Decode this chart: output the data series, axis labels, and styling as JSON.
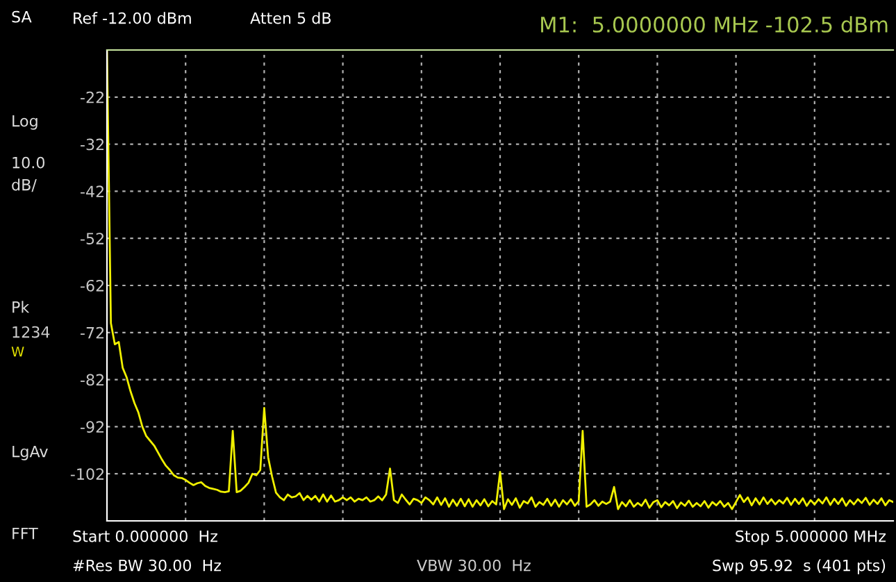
{
  "chart_data": {
    "type": "line",
    "categories": [
      null,
      null,
      null,
      null,
      null,
      null,
      null,
      null,
      null,
      null,
      null,
      null,
      null,
      null,
      null,
      null,
      null,
      null,
      null,
      null,
      null,
      null,
      null,
      null,
      null,
      null,
      null,
      null,
      null,
      null,
      null,
      null,
      null,
      null,
      null,
      null,
      null,
      null,
      null,
      null,
      null,
      null,
      null,
      null,
      null,
      null,
      null,
      null,
      null,
      null,
      null,
      null,
      null,
      null,
      null,
      null,
      null,
      null,
      null,
      null,
      null,
      null,
      null,
      null,
      null,
      null,
      null,
      null,
      null,
      null,
      null,
      null,
      null,
      null,
      null,
      null,
      null,
      null,
      null,
      null,
      null,
      null,
      null,
      null,
      null,
      null,
      null,
      null,
      null,
      null,
      null,
      null,
      null,
      null,
      null,
      null,
      null,
      null,
      null,
      null,
      null,
      null,
      null,
      null,
      null,
      null,
      null,
      null,
      null,
      null,
      null,
      null,
      null,
      null,
      null,
      null,
      null,
      null,
      null,
      null,
      null,
      null,
      null,
      null,
      null,
      null,
      null,
      null,
      null,
      null,
      null,
      null,
      null,
      null,
      null,
      null,
      null,
      null,
      null,
      null,
      null,
      null,
      null,
      null,
      null,
      null,
      null,
      null,
      null,
      null,
      null,
      null,
      null,
      null,
      null,
      null,
      null,
      null,
      null,
      null,
      null,
      null,
      null,
      null,
      null,
      null,
      null,
      null,
      null,
      null,
      null,
      null,
      null,
      null,
      null,
      null,
      null,
      null,
      null,
      null,
      null,
      null,
      null,
      null,
      null,
      null,
      null,
      null,
      null,
      null,
      null,
      null,
      null,
      null,
      null,
      null,
      null,
      null,
      null,
      null,
      null
    ],
    "series": [
      {
        "color": "#f0f000",
        "values": [
          -12,
          -70,
          -74.5,
          -74,
          -79.5,
          -81.5,
          -84.5,
          -87,
          -89,
          -92,
          -94,
          -95,
          -96,
          -97.5,
          -99,
          -100.3,
          -101.2,
          -102.3,
          -102.8,
          -102.9,
          -103.3,
          -103.9,
          -104.4,
          -104.0,
          -103.8,
          -104.6,
          -105.0,
          -105.2,
          -105.4,
          -105.8,
          -105.9,
          -105.7,
          -92.9,
          -105.9,
          -105.6,
          -104.8,
          -103.9,
          -102.0,
          -102.3,
          -101.2,
          -88.0,
          -98.5,
          -102.6,
          -106.0,
          -107.0,
          -107.6,
          -106.4,
          -107.0,
          -106.8,
          -106.1,
          -107.6,
          -106.7,
          -107.5,
          -106.7,
          -107.9,
          -106.4,
          -107.9,
          -106.6,
          -107.9,
          -107.6,
          -107.0,
          -107.6,
          -107.0,
          -107.9,
          -107.3,
          -107.6,
          -107.0,
          -107.9,
          -107.6,
          -106.8,
          -107.6,
          -106.4,
          -100.9,
          -107.6,
          -108.2,
          -106.4,
          -107.5,
          -108.5,
          -107.3,
          -107.6,
          -108.2,
          -107.0,
          -107.6,
          -108.5,
          -107.0,
          -108.6,
          -107.2,
          -109.0,
          -107.5,
          -108.8,
          -107.3,
          -108.9,
          -107.4,
          -109.0,
          -107.6,
          -108.7,
          -107.4,
          -108.9,
          -107.8,
          -108.5,
          -101.6,
          -109.5,
          -107.4,
          -108.6,
          -107.2,
          -109.2,
          -107.8,
          -108.3,
          -107.0,
          -109.0,
          -108.0,
          -108.6,
          -107.3,
          -108.8,
          -107.5,
          -109.0,
          -107.6,
          -108.5,
          -107.4,
          -108.8,
          -107.8,
          -92.9,
          -109.0,
          -108.5,
          -107.6,
          -108.8,
          -107.9,
          -108.4,
          -107.9,
          -104.8,
          -109.5,
          -108.0,
          -108.9,
          -107.6,
          -109.0,
          -108.2,
          -108.8,
          -107.5,
          -109.2,
          -108.0,
          -107.6,
          -109.1,
          -108.0,
          -108.7,
          -107.8,
          -109.3,
          -108.1,
          -108.8,
          -107.7,
          -109.0,
          -108.2,
          -108.9,
          -107.8,
          -109.2,
          -108.0,
          -108.7,
          -107.8,
          -109.0,
          -108.2,
          -109.5,
          -108.0,
          -106.5,
          -108.0,
          -107.0,
          -108.7,
          -107.2,
          -108.5,
          -107.0,
          -108.4,
          -107.4,
          -108.5,
          -107.6,
          -108.3,
          -107.1,
          -108.6,
          -107.3,
          -108.4,
          -107.2,
          -108.8,
          -107.6,
          -108.5,
          -107.4,
          -108.3,
          -107.0,
          -108.6,
          -107.3,
          -108.4,
          -107.2,
          -108.8,
          -107.6,
          -108.5,
          -107.4,
          -108.2,
          -107.1,
          -108.6,
          -107.5,
          -108.4,
          -107.2,
          -108.7,
          -107.6,
          -108.0
        ]
      }
    ],
    "ylim": [
      -112,
      -12
    ],
    "yticks": [
      -22,
      -32,
      -42,
      -52,
      -62,
      -72,
      -82,
      -92,
      -102
    ],
    "tick_labels": "y",
    "grid": true,
    "line_style": "solid",
    "marker": "none",
    "annotations": [
      "SA",
      "Log",
      "10.0",
      "dB/",
      "Pk",
      "1234",
      "W",
      "LgAv",
      "FFT",
      "Ref -12.00 dBm",
      "Atten 5 dB",
      "M1:  5.0000000 MHz -102.5 dBm",
      "Start 0.000000  Hz",
      "Stop 5.000000 MHz",
      "#Res BW 30.00  Hz",
      "VBW 30.00  Hz",
      "Swp 95.92  s (401 pts)"
    ]
  }
}
